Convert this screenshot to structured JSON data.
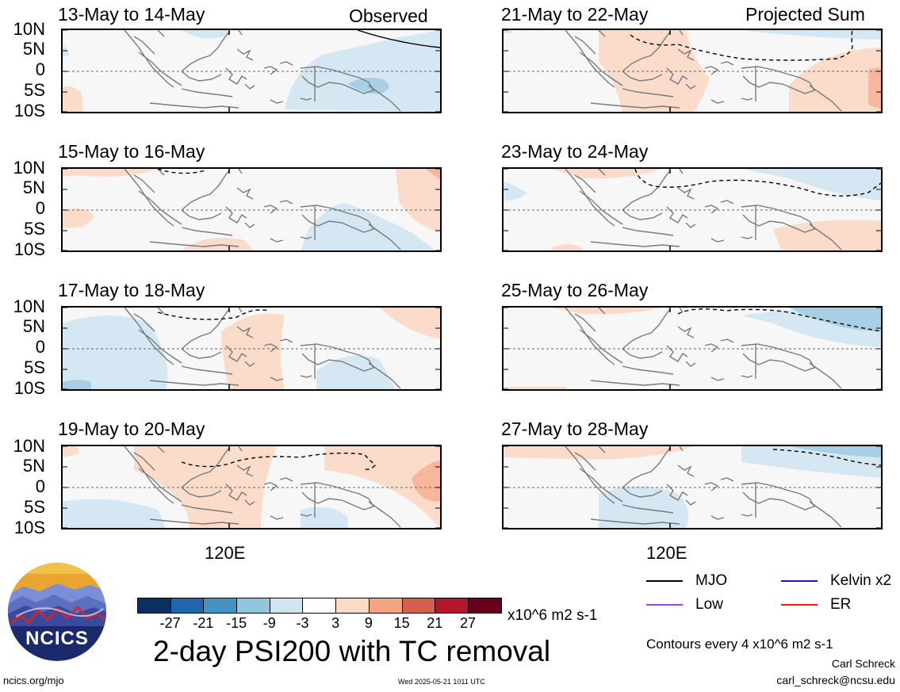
{
  "panels_left": [
    {
      "title": "13-May to 14-May",
      "label": "Observed"
    },
    {
      "title": "15-May to 16-May",
      "label": ""
    },
    {
      "title": "17-May to 18-May",
      "label": ""
    },
    {
      "title": "19-May to 20-May",
      "label": ""
    }
  ],
  "panels_right": [
    {
      "title": "21-May to 22-May",
      "label": "Projected Sum"
    },
    {
      "title": "23-May to 24-May",
      "label": ""
    },
    {
      "title": "25-May to 26-May",
      "label": ""
    },
    {
      "title": "27-May to 28-May",
      "label": ""
    }
  ],
  "lat_ticks": [
    "10N",
    "5N",
    "0",
    "5S",
    "10S"
  ],
  "lon_tick": "120E",
  "legend": {
    "items": [
      {
        "label": "MJO",
        "color": "#000000"
      },
      {
        "label": "Kelvin x2",
        "color": "#1a1acc"
      },
      {
        "label": "Low",
        "color": "#9b44e0"
      },
      {
        "label": "ER",
        "color": "#e8221a"
      }
    ],
    "contours_note": "Contours every 4 x10^6 m2 s-1"
  },
  "colorbar": {
    "labels": [
      "-27",
      "-21",
      "-15",
      "-9",
      "-3",
      "3",
      "9",
      "15",
      "21",
      "27"
    ],
    "colors": [
      "#0a3061",
      "#2166ac",
      "#4393c3",
      "#92c5de",
      "#d1e5f0",
      "#ffffff",
      "#fddbc7",
      "#f4a582",
      "#d6604d",
      "#b2182b",
      "#67001f"
    ],
    "units": "x10^6 m2 s-1"
  },
  "title": "2-day PSI200 with TC removal",
  "footer": {
    "left": "ncics.org/mjo",
    "center": "Wed 2025-05-21 1011 UTC",
    "author": "Carl Schreck",
    "email": "carl_schreck@ncsu.edu"
  },
  "logo_text": "NCICS"
}
